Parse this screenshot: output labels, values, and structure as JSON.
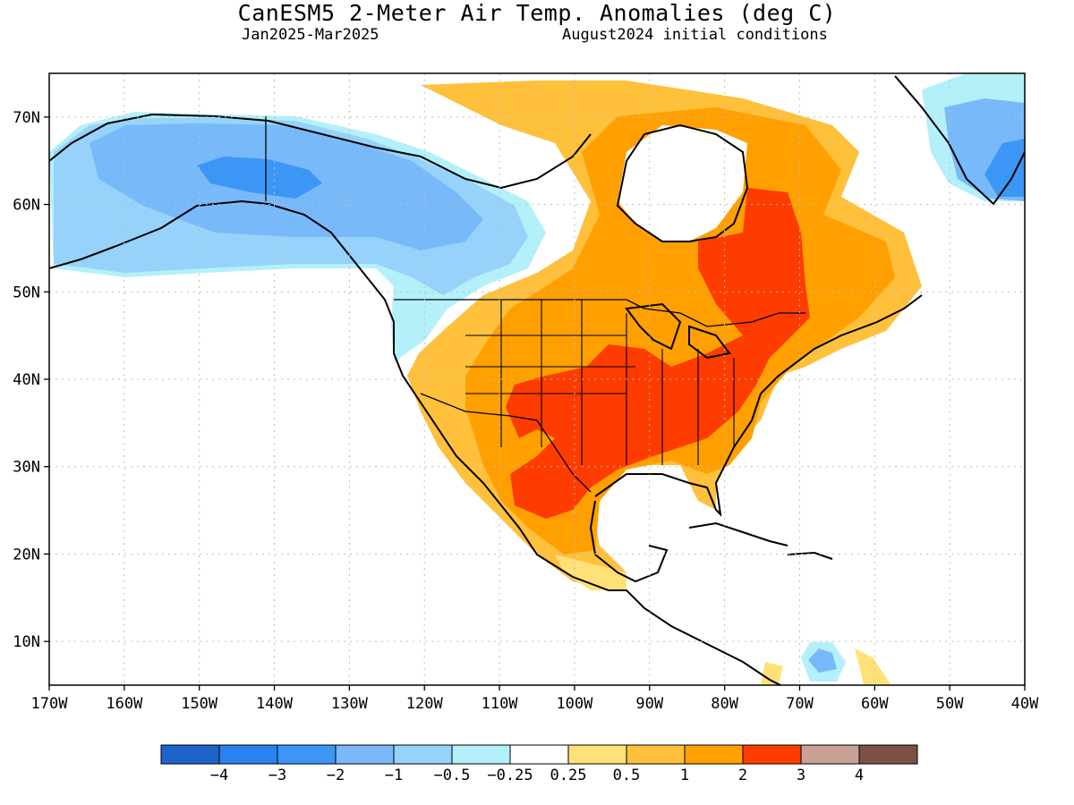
{
  "header": {
    "title": "CanESM5 2-Meter Air Temp. Anomalies (deg C)",
    "period": "Jan2025-Mar2025",
    "initial": "August2024 initial conditions"
  },
  "map": {
    "projection": "cylindrical",
    "lon_range": [
      -170,
      -40
    ],
    "lat_range": [
      5,
      75
    ],
    "lon_ticks": [
      {
        "v": -170,
        "label": "170W"
      },
      {
        "v": -160,
        "label": "160W"
      },
      {
        "v": -150,
        "label": "150W"
      },
      {
        "v": -140,
        "label": "140W"
      },
      {
        "v": -130,
        "label": "130W"
      },
      {
        "v": -120,
        "label": "120W"
      },
      {
        "v": -110,
        "label": "110W"
      },
      {
        "v": -100,
        "label": "100W"
      },
      {
        "v": -90,
        "label": "90W"
      },
      {
        "v": -80,
        "label": "80W"
      },
      {
        "v": -70,
        "label": "70W"
      },
      {
        "v": -60,
        "label": "60W"
      },
      {
        "v": -50,
        "label": "50W"
      },
      {
        "v": -40,
        "label": "40W"
      }
    ],
    "lat_ticks": [
      {
        "v": 10,
        "label": "10N"
      },
      {
        "v": 20,
        "label": "20N"
      },
      {
        "v": 30,
        "label": "30N"
      },
      {
        "v": 40,
        "label": "40N"
      },
      {
        "v": 50,
        "label": "50N"
      },
      {
        "v": 60,
        "label": "60N"
      },
      {
        "v": 70,
        "label": "70N"
      }
    ],
    "gridlines": "dotted"
  },
  "colorbar": {
    "colors": [
      "#1e64c8",
      "#2882f0",
      "#3c96f5",
      "#78b9fa",
      "#96d2fa",
      "#b4f0fa",
      "#ffffff",
      "#ffe178",
      "#ffc03c",
      "#ffa000",
      "#ff3c00",
      "#c8a096",
      "#7d5046"
    ],
    "labels": [
      "-4",
      "-3",
      "-2",
      "-1",
      "-0.5",
      "-0.25",
      "0.25",
      "0.5",
      "1",
      "2",
      "3",
      "4"
    ]
  }
}
